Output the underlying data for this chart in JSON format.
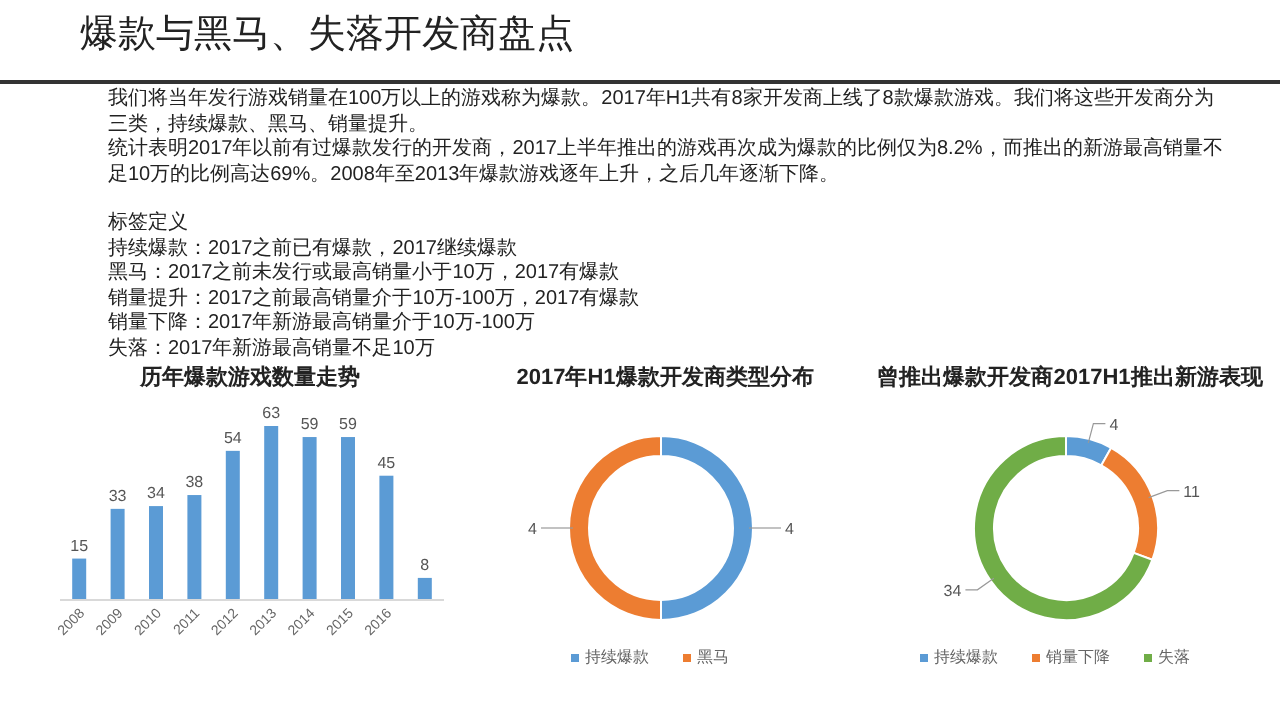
{
  "chart_data": [
    {
      "type": "other",
      "title": "爆款与黑马、失落开发商盘点",
      "annotations": [
        "我们将当年发行游戏销量在100万以上的游戏称为爆款。2017年H1共有8家开发商上线了8款爆款游戏。我们将这些开发商分为三类，持续爆款、黑马、销量提升。",
        "统计表明2017年以前有过爆款发行的开发商，2017上半年推出的游戏再次成为爆款的比例仅为8.2%，而推出的新游最高销量不足10万的比例高达69%。2008年至2013年爆款游戏逐年上升，之后几年逐渐下降。",
        "标签定义",
        "持续爆款：2017之前已有爆款，2017继续爆款",
        "黑马：2017之前未发行或最高销量小于10万，2017有爆款",
        "销量提升：2017之前最高销量介于10万-100万，2017有爆款",
        "销量下降：2017年新游最高销量介于10万-100万",
        "失落：2017年新游最高销量不足10万"
      ]
    },
    {
      "type": "bar",
      "title": "历年爆款游戏数量走势",
      "categories": [
        "2008",
        "2009",
        "2010",
        "2011",
        "2012",
        "2013",
        "2014",
        "2015",
        "2016",
        null
      ],
      "values": [
        15,
        33,
        34,
        38,
        54,
        63,
        59,
        59,
        45,
        8
      ],
      "color": "#5b9bd5",
      "data_labels": true,
      "relative": false
    },
    {
      "type": "donut",
      "title": "2017年H1爆款开发商类型分布",
      "categories": [
        "持续爆款",
        "黑马"
      ],
      "values": [
        4,
        4
      ],
      "colors": [
        "#5b9bd5",
        "#ed7d31"
      ],
      "data_labels": true,
      "legend": "bottom"
    },
    {
      "type": "donut",
      "title": "曾推出爆款开发商2017H1推出新游表现",
      "categories": [
        "持续爆款",
        "销量下降",
        "失落"
      ],
      "values": [
        4,
        11,
        34
      ],
      "colors": [
        "#5b9bd5",
        "#ed7d31",
        "#70ad47"
      ],
      "data_labels": true,
      "legend": "bottom"
    }
  ]
}
